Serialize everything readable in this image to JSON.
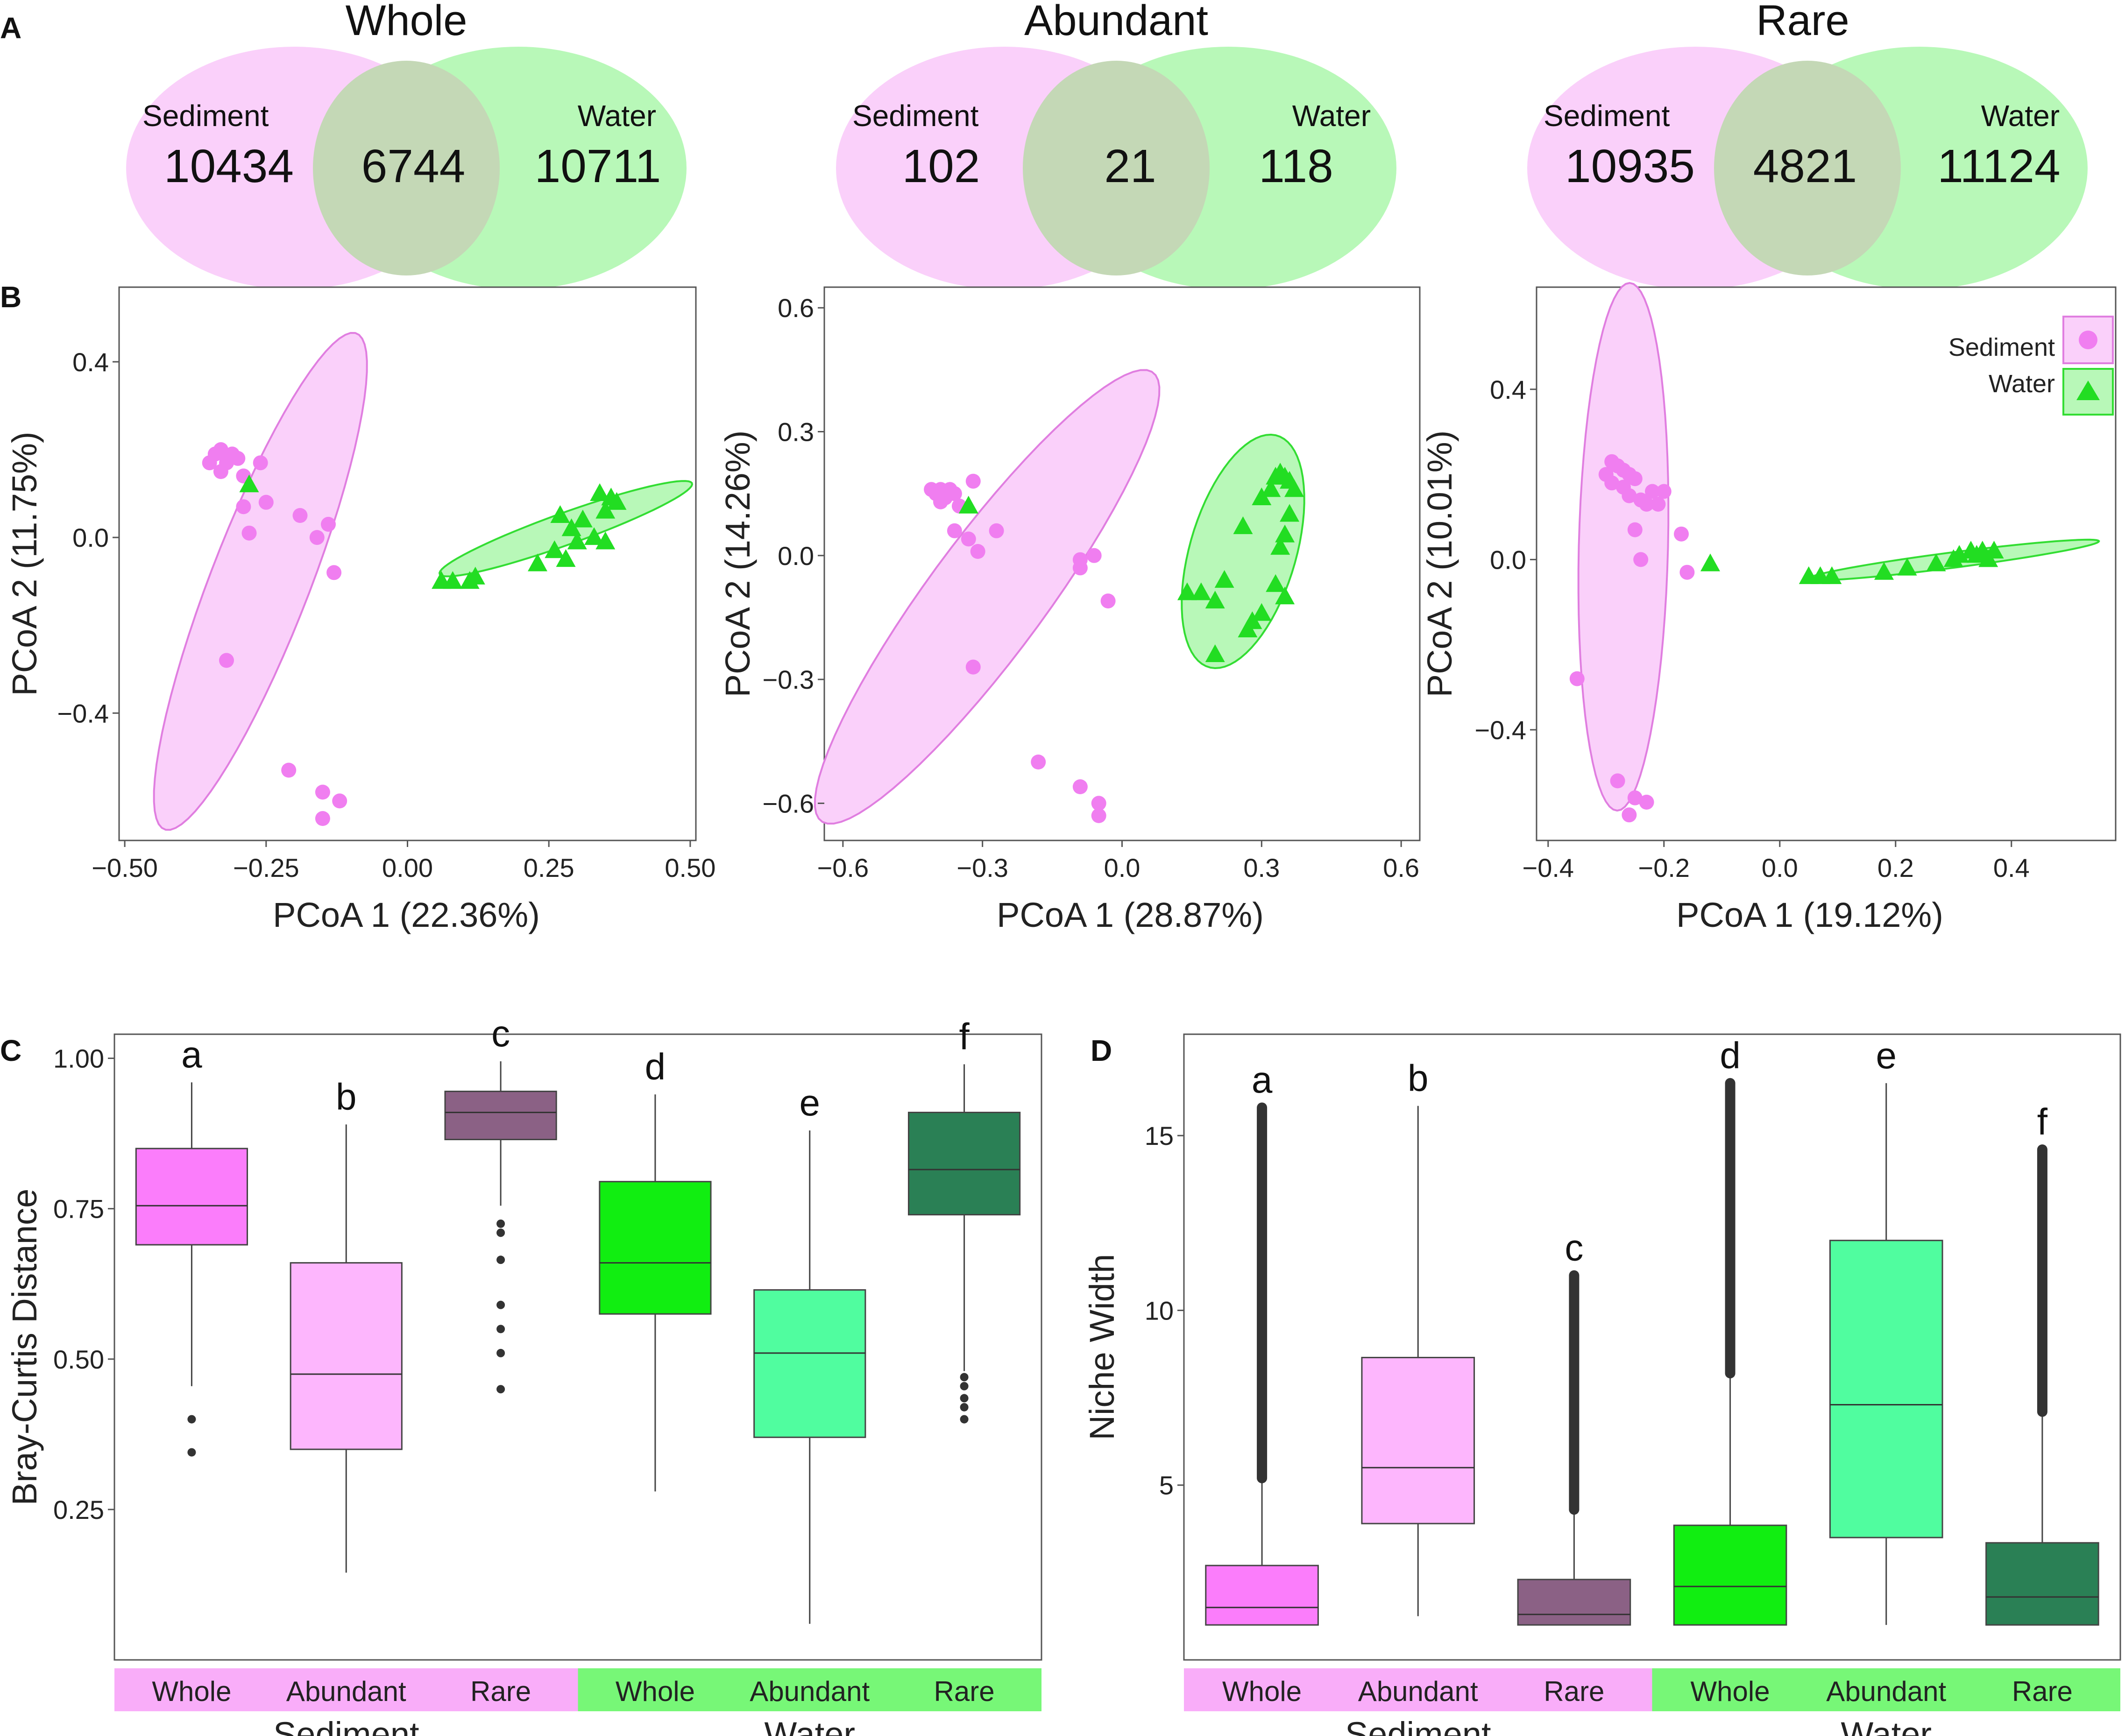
{
  "panel_labels": {
    "A": "A",
    "B": "B",
    "C": "C",
    "D": "D"
  },
  "colors": {
    "sediment_fill": "#fad0fa",
    "sediment_point": "#f07ef0",
    "sediment_stroke": "#e07ee0",
    "water_fill": "#b8f8b8",
    "water_point": "#22dd22",
    "water_stroke": "#33dd33",
    "overlap_fill": "#c4d8b6",
    "box_sed_whole": "#fb7dfb",
    "box_sed_abundant": "#fdb6fd",
    "box_sed_rare": "#8b6185",
    "box_wat_whole": "#11ee11",
    "box_wat_abundant": "#50fd9f",
    "box_wat_rare": "#2a8055",
    "strip_sediment": "#f9adf9",
    "strip_water": "#77f777"
  },
  "chart_data": [
    {
      "type": "venn",
      "panel": "A",
      "title": "Whole",
      "sets": [
        "Sediment",
        "Water"
      ],
      "only_sediment": "10434",
      "shared": "6744",
      "only_water": "10711"
    },
    {
      "type": "venn",
      "panel": "A",
      "title": "Abundant",
      "sets": [
        "Sediment",
        "Water"
      ],
      "only_sediment": "102",
      "shared": "21",
      "only_water": "118"
    },
    {
      "type": "venn",
      "panel": "A",
      "title": "Rare",
      "sets": [
        "Sediment",
        "Water"
      ],
      "only_sediment": "10935",
      "shared": "4821",
      "only_water": "11124"
    },
    {
      "type": "scatter",
      "panel": "B",
      "xlabel": "PCoA 1 (22.36%)",
      "ylabel": "PCoA 2 (11.75%)",
      "xlim": [
        -0.51,
        0.51
      ],
      "ylim": [
        -0.69,
        0.57
      ],
      "xticks": [
        -0.5,
        -0.25,
        0,
        0.25,
        0.5
      ],
      "xtick_labels": [
        "−0.50",
        "−0.25",
        "0.00",
        "0.25",
        "0.50"
      ],
      "yticks": [
        -0.4,
        0,
        0.4
      ],
      "ytick_labels": [
        "−0.4",
        "0.0",
        "0.4"
      ],
      "ellipses": [
        {
          "group": "Sediment",
          "cx": -0.26,
          "cy": -0.1,
          "rx": 0.59,
          "ry": 0.09,
          "angle_deg": 73.5
        },
        {
          "group": "Water",
          "cx": 0.28,
          "cy": 0.02,
          "rx": 0.246,
          "ry": 0.035,
          "angle_deg": 25
        }
      ],
      "series": [
        {
          "name": "Sediment",
          "marker": "circle",
          "points": [
            [
              -0.35,
              0.17
            ],
            [
              -0.34,
              0.19
            ],
            [
              -0.33,
              0.2
            ],
            [
              -0.32,
              0.17
            ],
            [
              -0.31,
              0.19
            ],
            [
              -0.3,
              0.18
            ],
            [
              -0.33,
              0.15
            ],
            [
              -0.29,
              0.14
            ],
            [
              -0.26,
              0.17
            ],
            [
              -0.25,
              0.08
            ],
            [
              -0.29,
              0.07
            ],
            [
              -0.28,
              0.01
            ],
            [
              -0.19,
              0.05
            ],
            [
              -0.16,
              0.0
            ],
            [
              -0.14,
              0.03
            ],
            [
              -0.13,
              -0.08
            ],
            [
              -0.32,
              -0.28
            ],
            [
              -0.21,
              -0.53
            ],
            [
              -0.15,
              -0.58
            ],
            [
              -0.12,
              -0.6
            ],
            [
              -0.15,
              -0.64
            ]
          ]
        },
        {
          "name": "Water",
          "marker": "triangle",
          "points": [
            [
              -0.28,
              0.12
            ],
            [
              0.06,
              -0.1
            ],
            [
              0.08,
              -0.1
            ],
            [
              0.11,
              -0.1
            ],
            [
              0.12,
              -0.09
            ],
            [
              0.23,
              -0.06
            ],
            [
              0.26,
              -0.03
            ],
            [
              0.28,
              -0.05
            ],
            [
              0.29,
              0.02
            ],
            [
              0.3,
              -0.01
            ],
            [
              0.31,
              0.04
            ],
            [
              0.33,
              0.0
            ],
            [
              0.34,
              0.1
            ],
            [
              0.35,
              0.06
            ],
            [
              0.36,
              0.09
            ],
            [
              0.37,
              0.08
            ],
            [
              0.35,
              -0.01
            ],
            [
              0.27,
              0.05
            ]
          ]
        }
      ]
    },
    {
      "type": "scatter",
      "panel": "B",
      "xlabel": "PCoA 1 (28.87%)",
      "ylabel": "PCoA 2 (14.26%)",
      "xlim": [
        -0.64,
        0.64
      ],
      "ylim": [
        -0.69,
        0.65
      ],
      "xticks": [
        -0.6,
        -0.3,
        0,
        0.3,
        0.6
      ],
      "xtick_labels": [
        "−0.6",
        "−0.3",
        "0.0",
        "0.3",
        "0.6"
      ],
      "yticks": [
        -0.6,
        -0.3,
        0,
        0.3,
        0.6
      ],
      "ytick_labels": [
        "−0.6",
        "−0.3",
        "0.0",
        "0.3",
        "0.6"
      ],
      "ellipses": [
        {
          "group": "Sediment",
          "cx": -0.29,
          "cy": -0.1,
          "rx": 0.65,
          "ry": 0.13,
          "angle_deg": 57
        },
        {
          "group": "Water",
          "cx": 0.26,
          "cy": 0.01,
          "rx": 0.29,
          "ry": 0.115,
          "angle_deg": 76
        }
      ],
      "series": [
        {
          "name": "Sediment",
          "marker": "circle",
          "points": [
            [
              -0.41,
              0.16
            ],
            [
              -0.4,
              0.15
            ],
            [
              -0.39,
              0.16
            ],
            [
              -0.38,
              0.14
            ],
            [
              -0.37,
              0.16
            ],
            [
              -0.36,
              0.15
            ],
            [
              -0.39,
              0.13
            ],
            [
              -0.35,
              0.12
            ],
            [
              -0.32,
              0.18
            ],
            [
              -0.36,
              0.06
            ],
            [
              -0.33,
              0.04
            ],
            [
              -0.31,
              0.01
            ],
            [
              -0.27,
              0.06
            ],
            [
              -0.09,
              -0.01
            ],
            [
              -0.09,
              -0.03
            ],
            [
              -0.06,
              0.0
            ],
            [
              -0.03,
              -0.11
            ],
            [
              -0.32,
              -0.27
            ],
            [
              -0.18,
              -0.5
            ],
            [
              -0.09,
              -0.56
            ],
            [
              -0.05,
              -0.6
            ],
            [
              -0.05,
              -0.63
            ]
          ]
        },
        {
          "name": "Water",
          "marker": "triangle",
          "points": [
            [
              -0.33,
              0.12
            ],
            [
              0.14,
              -0.09
            ],
            [
              0.17,
              -0.09
            ],
            [
              0.2,
              -0.11
            ],
            [
              0.22,
              -0.06
            ],
            [
              0.2,
              -0.24
            ],
            [
              0.26,
              0.07
            ],
            [
              0.27,
              -0.18
            ],
            [
              0.28,
              -0.16
            ],
            [
              0.3,
              0.14
            ],
            [
              0.32,
              0.16
            ],
            [
              0.33,
              0.19
            ],
            [
              0.34,
              0.2
            ],
            [
              0.35,
              0.19
            ],
            [
              0.36,
              0.18
            ],
            [
              0.37,
              0.16
            ],
            [
              0.36,
              0.1
            ],
            [
              0.35,
              0.05
            ],
            [
              0.34,
              0.02
            ],
            [
              0.33,
              -0.07
            ],
            [
              0.35,
              -0.1
            ],
            [
              0.3,
              -0.14
            ]
          ]
        }
      ]
    },
    {
      "type": "scatter",
      "panel": "B",
      "xlabel": "PCoA 1 (19.12%)",
      "ylabel": "PCoA 2 (10.01%)",
      "xlim": [
        -0.42,
        0.58
      ],
      "ylim": [
        -0.66,
        0.64
      ],
      "xticks": [
        -0.4,
        -0.2,
        0,
        0.2,
        0.4
      ],
      "xtick_labels": [
        "−0.4",
        "−0.2",
        "0.0",
        "0.2",
        "0.4"
      ],
      "yticks": [
        -0.4,
        0,
        0.4
      ],
      "ytick_labels": [
        "−0.4",
        "0.0",
        "0.4"
      ],
      "legend": {
        "position": "top-right",
        "entries": [
          "Sediment",
          "Water"
        ]
      },
      "ellipses": [
        {
          "group": "Sediment",
          "cx": -0.27,
          "cy": 0.03,
          "rx": 0.62,
          "ry": 0.077,
          "angle_deg": 89
        },
        {
          "group": "Water",
          "cx": 0.3,
          "cy": -0.001,
          "rx": 0.255,
          "ry": 0.018,
          "angle_deg": 10
        }
      ],
      "series": [
        {
          "name": "Sediment",
          "marker": "circle",
          "points": [
            [
              -0.29,
              0.23
            ],
            [
              -0.28,
              0.22
            ],
            [
              -0.27,
              0.21
            ],
            [
              -0.26,
              0.2
            ],
            [
              -0.25,
              0.19
            ],
            [
              -0.29,
              0.18
            ],
            [
              -0.27,
              0.17
            ],
            [
              -0.3,
              0.2
            ],
            [
              -0.26,
              0.15
            ],
            [
              -0.24,
              0.14
            ],
            [
              -0.22,
              0.16
            ],
            [
              -0.2,
              0.16
            ],
            [
              -0.23,
              0.13
            ],
            [
              -0.21,
              0.13
            ],
            [
              -0.25,
              0.07
            ],
            [
              -0.17,
              0.06
            ],
            [
              -0.24,
              0.0
            ],
            [
              -0.16,
              -0.03
            ],
            [
              -0.35,
              -0.28
            ],
            [
              -0.28,
              -0.52
            ],
            [
              -0.25,
              -0.56
            ],
            [
              -0.23,
              -0.57
            ],
            [
              -0.26,
              -0.6
            ]
          ]
        },
        {
          "name": "Water",
          "marker": "triangle",
          "points": [
            [
              -0.12,
              -0.01
            ],
            [
              0.05,
              -0.04
            ],
            [
              0.07,
              -0.04
            ],
            [
              0.09,
              -0.04
            ],
            [
              0.18,
              -0.03
            ],
            [
              0.22,
              -0.02
            ],
            [
              0.27,
              -0.01
            ],
            [
              0.3,
              0.0
            ],
            [
              0.31,
              0.01
            ],
            [
              0.33,
              0.02
            ],
            [
              0.34,
              0.01
            ],
            [
              0.35,
              0.02
            ],
            [
              0.37,
              0.02
            ],
            [
              0.36,
              0.0
            ]
          ]
        }
      ]
    },
    {
      "type": "box",
      "panel": "C",
      "ylabel": "Bray-Curtis Distance",
      "ylim": [
        0.0,
        1.04
      ],
      "yticks": [
        0.25,
        0.5,
        0.75,
        1.0
      ],
      "ytick_labels": [
        "0.25",
        "0.50",
        "0.75",
        "1.00"
      ],
      "categories": [
        "Whole",
        "Abundant",
        "Rare",
        "Whole",
        "Abundant",
        "Rare"
      ],
      "groups": [
        {
          "name": "Sediment",
          "span": [
            0,
            2
          ]
        },
        {
          "name": "Water",
          "span": [
            3,
            5
          ]
        }
      ],
      "boxes": [
        {
          "q1": 0.69,
          "median": 0.755,
          "q3": 0.85,
          "whisker_low": 0.455,
          "whisker_high": 0.96,
          "letter": "a",
          "outliers": [
            0.4,
            0.345
          ]
        },
        {
          "q1": 0.35,
          "median": 0.475,
          "q3": 0.66,
          "whisker_low": 0.145,
          "whisker_high": 0.89,
          "letter": "b",
          "outliers": []
        },
        {
          "q1": 0.865,
          "median": 0.91,
          "q3": 0.945,
          "whisker_low": 0.755,
          "whisker_high": 0.995,
          "letter": "c",
          "outliers": [
            0.725,
            0.71,
            0.665,
            0.59,
            0.55,
            0.51,
            0.45
          ]
        },
        {
          "q1": 0.575,
          "median": 0.66,
          "q3": 0.795,
          "whisker_low": 0.28,
          "whisker_high": 0.94,
          "letter": "d",
          "outliers": []
        },
        {
          "q1": 0.37,
          "median": 0.51,
          "q3": 0.615,
          "whisker_low": 0.06,
          "whisker_high": 0.88,
          "letter": "e",
          "outliers": []
        },
        {
          "q1": 0.74,
          "median": 0.815,
          "q3": 0.91,
          "whisker_low": 0.48,
          "whisker_high": 0.99,
          "letter": "f",
          "outliers": [
            0.47,
            0.455,
            0.435,
            0.42,
            0.4
          ]
        }
      ]
    },
    {
      "type": "box",
      "panel": "D",
      "ylabel": "Niche Width",
      "ylim": [
        0.0,
        17.9
      ],
      "yticks": [
        5,
        10,
        15
      ],
      "ytick_labels": [
        "5",
        "10",
        "15"
      ],
      "categories": [
        "Whole",
        "Abundant",
        "Rare",
        "Whole",
        "Abundant",
        "Rare"
      ],
      "groups": [
        {
          "name": "Sediment",
          "span": [
            0,
            2
          ]
        },
        {
          "name": "Water",
          "span": [
            3,
            5
          ]
        }
      ],
      "boxes": [
        {
          "q1": 1.0,
          "median": 1.5,
          "q3": 2.7,
          "whisker_low": 1.0,
          "whisker_high": 5.1,
          "letter": "a",
          "outlier_band": [
            5.2,
            15.8
          ]
        },
        {
          "q1": 3.9,
          "median": 5.5,
          "q3": 8.65,
          "whisker_low": 1.25,
          "whisker_high": 15.85,
          "letter": "b",
          "outlier_band": null
        },
        {
          "q1": 1.0,
          "median": 1.3,
          "q3": 2.3,
          "whisker_low": 1.0,
          "whisker_high": 4.2,
          "letter": "c",
          "outlier_band": [
            4.3,
            11.0
          ]
        },
        {
          "q1": 1.0,
          "median": 2.1,
          "q3": 3.85,
          "whisker_low": 1.0,
          "whisker_high": 8.1,
          "letter": "d",
          "outlier_band": [
            8.2,
            16.5
          ]
        },
        {
          "q1": 3.5,
          "median": 7.3,
          "q3": 12.0,
          "whisker_low": 1.0,
          "whisker_high": 16.5,
          "letter": "e",
          "outlier_band": null
        },
        {
          "q1": 1.0,
          "median": 1.8,
          "q3": 3.35,
          "whisker_low": 1.0,
          "whisker_high": 7.0,
          "letter": "f",
          "outlier_band": [
            7.1,
            14.6
          ]
        }
      ]
    }
  ]
}
